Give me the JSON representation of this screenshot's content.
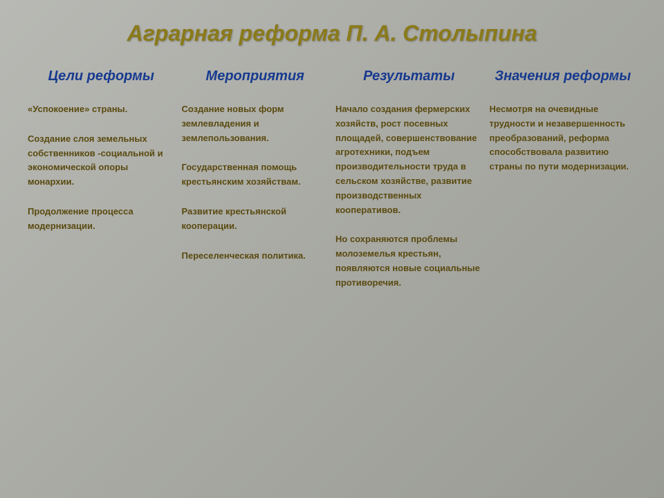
{
  "title": "Аграрная реформа П. А. Столыпина",
  "columns": [
    {
      "header": "Цели реформы",
      "paragraphs": [
        "«Успокоение» страны.",
        "Создание слоя земельных собственников -социальной и экономической опоры монархии.",
        "Продолжение процесса модернизации."
      ]
    },
    {
      "header": "Мероприятия",
      "paragraphs": [
        "Создание новых форм землевладения и землепользования.",
        "Государственная помощь крестьянским хозяйствам.",
        "Развитие крестьянской кооперации.",
        "Переселенческая политика."
      ]
    },
    {
      "header": "Результаты",
      "paragraphs": [
        "Начало создания фермерских хозяйств, рост посевных площадей, совершенствование агротехники, подъем производительности труда в сельском хозяйстве, развитие производственных кооперативов.",
        "Но сохраняются проблемы молоземелья крестьян, появляются новые социальные противоречия."
      ]
    },
    {
      "header": "Значения реформы",
      "paragraphs": [
        "Несмотря на очевидные трудности и незавершенность преобразований, реформа способствовала развитию страны по пути модернизации."
      ]
    }
  ],
  "style": {
    "title_color": "#8a7a1a",
    "header_color": "#173a8f",
    "body_color": "#5a4a10",
    "bg_gradient_from": "#b8b9b4",
    "bg_gradient_to": "#9a9b95",
    "title_fontsize": 32,
    "header_fontsize": 20,
    "body_fontsize": 13
  }
}
